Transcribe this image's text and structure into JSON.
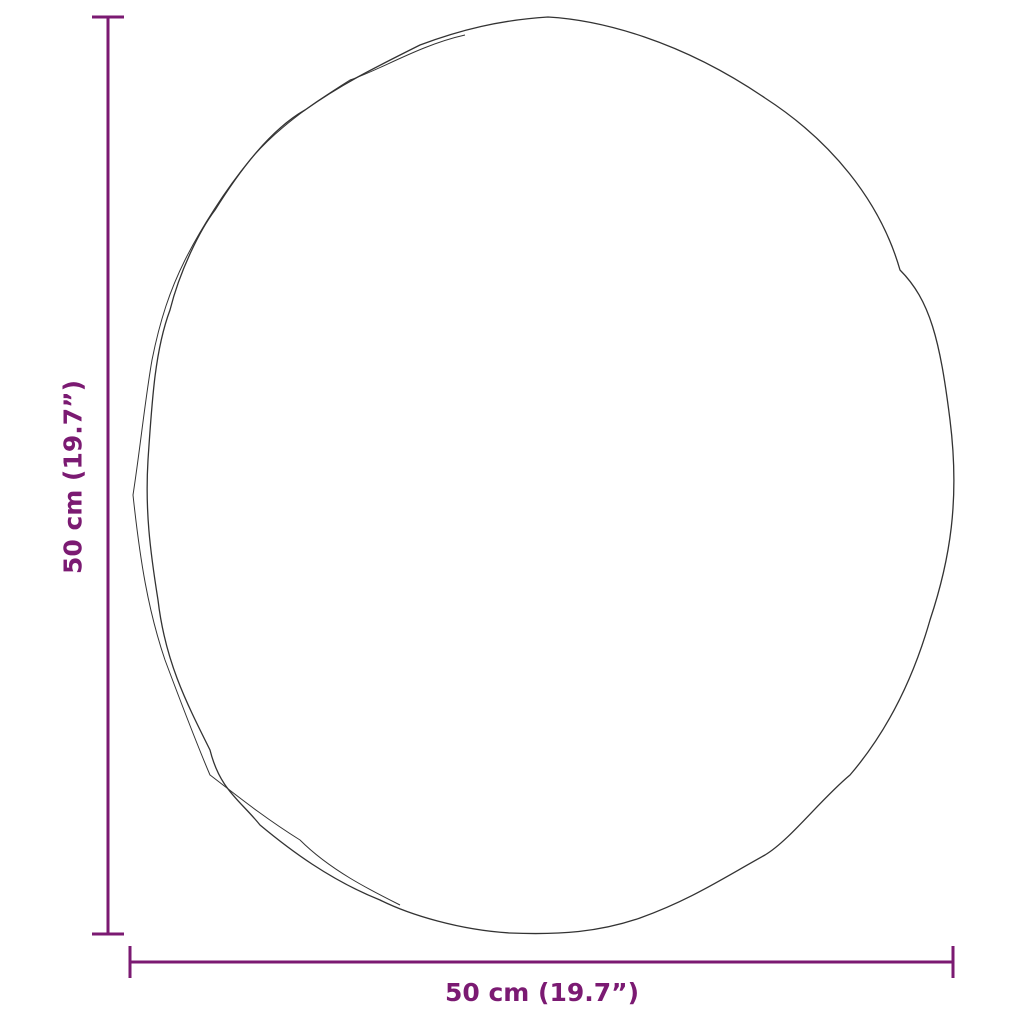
{
  "dimensions": {
    "width_label": "50 cm (19.7”)",
    "height_label": "50 cm (19.7”)"
  },
  "colors": {
    "dimension": "#7b1a72",
    "outline": "#333333"
  },
  "object": "round-mirror-outline"
}
